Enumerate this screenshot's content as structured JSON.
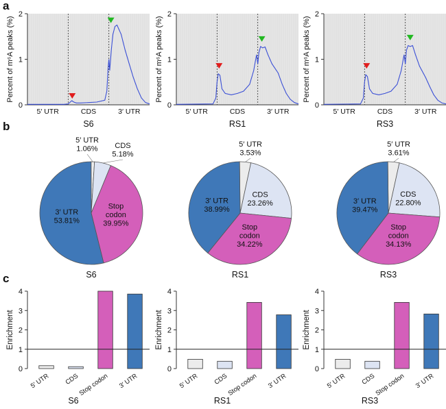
{
  "panel_labels": {
    "a": "a",
    "b": "b",
    "c": "c"
  },
  "chart_data": [
    {
      "type": "line",
      "panel": "a",
      "title": "S6",
      "ylabel": "Percent of m⁶A peaks (%)",
      "yticks": [
        "0",
        "1",
        "2"
      ],
      "ylim": [
        0,
        2
      ],
      "regions": [
        "5′ UTR",
        "CDS",
        "3′ UTR"
      ],
      "region_boundaries": [
        1,
        2
      ],
      "xlim": [
        0,
        3
      ],
      "grid": false,
      "shaded_background": "#e6e6e6",
      "line_color": "#3a4fd6",
      "markers": [
        {
          "x": 1.1,
          "y": 0.12,
          "color": "#e11d1d"
        },
        {
          "x": 2.05,
          "y": 1.78,
          "color": "#22b822"
        }
      ],
      "x": [
        0.0,
        0.9,
        1.0,
        1.05,
        1.09,
        1.14,
        1.2,
        1.3,
        1.5,
        1.7,
        1.9,
        1.95,
        1.98,
        2.0,
        2.02,
        2.06,
        2.1,
        2.15,
        2.2,
        2.3,
        2.4,
        2.5,
        2.6,
        2.7,
        2.8,
        2.9,
        3.0
      ],
      "y": [
        0.01,
        0.01,
        0.02,
        0.06,
        0.09,
        0.06,
        0.04,
        0.04,
        0.05,
        0.06,
        0.1,
        0.3,
        0.8,
        1.0,
        0.75,
        1.2,
        1.55,
        1.72,
        1.75,
        1.55,
        1.2,
        0.9,
        0.6,
        0.35,
        0.15,
        0.05,
        0.02
      ]
    },
    {
      "type": "line",
      "panel": "a",
      "title": "RS1",
      "ylabel": "Percent of m⁶A peaks (%)",
      "yticks": [
        "0",
        "1",
        "2"
      ],
      "ylim": [
        0,
        2
      ],
      "regions": [
        "5′ UTR",
        "CDS",
        "3′ UTR"
      ],
      "region_boundaries": [
        1,
        2
      ],
      "xlim": [
        0,
        3
      ],
      "grid": false,
      "shaded_background": "#e6e6e6",
      "line_color": "#3a4fd6",
      "markers": [
        {
          "x": 1.05,
          "y": 0.78,
          "color": "#e11d1d"
        },
        {
          "x": 2.1,
          "y": 1.37,
          "color": "#22b822"
        }
      ],
      "x": [
        0.0,
        0.9,
        0.97,
        1.0,
        1.03,
        1.07,
        1.12,
        1.2,
        1.35,
        1.5,
        1.65,
        1.8,
        1.9,
        1.97,
        2.0,
        2.03,
        2.07,
        2.12,
        2.18,
        2.25,
        2.35,
        2.5,
        2.6,
        2.7,
        2.8,
        2.9,
        3.0
      ],
      "y": [
        0.01,
        0.02,
        0.15,
        0.5,
        0.68,
        0.65,
        0.35,
        0.25,
        0.22,
        0.25,
        0.3,
        0.45,
        0.75,
        1.1,
        0.9,
        1.15,
        1.28,
        1.25,
        1.27,
        1.1,
        0.9,
        0.7,
        0.45,
        0.25,
        0.12,
        0.05,
        0.02
      ]
    },
    {
      "type": "line",
      "panel": "a",
      "title": "RS3",
      "ylabel": "Percent of m⁶A peaks (%)",
      "yticks": [
        "0",
        "1",
        "2"
      ],
      "ylim": [
        0,
        2
      ],
      "regions": [
        "5′ UTR",
        "CDS",
        "3′ UTR"
      ],
      "region_boundaries": [
        1,
        2
      ],
      "xlim": [
        0,
        3
      ],
      "grid": false,
      "shaded_background": "#e6e6e6",
      "line_color": "#3a4fd6",
      "markers": [
        {
          "x": 1.05,
          "y": 0.78,
          "color": "#e11d1d"
        },
        {
          "x": 2.12,
          "y": 1.4,
          "color": "#22b822"
        }
      ],
      "x": [
        0.0,
        0.9,
        0.97,
        1.0,
        1.03,
        1.07,
        1.12,
        1.2,
        1.35,
        1.5,
        1.65,
        1.8,
        1.9,
        1.97,
        2.0,
        2.03,
        2.07,
        2.12,
        2.18,
        2.25,
        2.35,
        2.5,
        2.6,
        2.7,
        2.8,
        2.9,
        3.0
      ],
      "y": [
        0.01,
        0.02,
        0.15,
        0.5,
        0.66,
        0.62,
        0.35,
        0.25,
        0.22,
        0.25,
        0.3,
        0.45,
        0.75,
        1.1,
        0.9,
        1.2,
        1.3,
        1.28,
        1.3,
        1.1,
        0.85,
        0.6,
        0.4,
        0.22,
        0.1,
        0.04,
        0.02
      ]
    },
    {
      "type": "pie",
      "panel": "b",
      "title": "S6",
      "slices": [
        {
          "name": "5′ UTR",
          "value": 1.06,
          "label": "1.06%",
          "color": "#ececec"
        },
        {
          "name": "CDS",
          "value": 5.18,
          "label": "5.18%",
          "color": "#dde4f3"
        },
        {
          "name": "Stop codon",
          "value": 39.95,
          "label": "39.95%",
          "color": "#d45fba"
        },
        {
          "name": "3′ UTR",
          "value": 53.81,
          "label": "53.81%",
          "color": "#3f78b8"
        }
      ]
    },
    {
      "type": "pie",
      "panel": "b",
      "title": "RS1",
      "slices": [
        {
          "name": "5′ UTR",
          "value": 3.53,
          "label": "3.53%",
          "color": "#ececec"
        },
        {
          "name": "CDS",
          "value": 23.26,
          "label": "23.26%",
          "color": "#dde4f3"
        },
        {
          "name": "Stop codon",
          "value": 34.22,
          "label": "34.22%",
          "color": "#d45fba"
        },
        {
          "name": "3′ UTR",
          "value": 38.99,
          "label": "38.99%",
          "color": "#3f78b8"
        }
      ]
    },
    {
      "type": "pie",
      "panel": "b",
      "title": "RS3",
      "slices": [
        {
          "name": "5′ UTR",
          "value": 3.61,
          "label": "3.61%",
          "color": "#ececec"
        },
        {
          "name": "CDS",
          "value": 22.8,
          "label": "22.80%",
          "color": "#dde4f3"
        },
        {
          "name": "Stop codon",
          "value": 34.13,
          "label": "34.13%",
          "color": "#d45fba"
        },
        {
          "name": "3′ UTR",
          "value": 39.47,
          "label": "39.47%",
          "color": "#3f78b8"
        }
      ]
    },
    {
      "type": "bar",
      "panel": "c",
      "title": "S6",
      "ylabel": "Enrichment",
      "yticks": [
        "0",
        "1",
        "2",
        "3",
        "4"
      ],
      "ylim": [
        0,
        4
      ],
      "reference_line": 1,
      "categories": [
        "5′ UTR",
        "CDS",
        "Stop codon",
        "3′ UTR"
      ],
      "values": [
        0.15,
        0.1,
        4.0,
        3.85
      ],
      "colors": [
        "#ececec",
        "#dde4f3",
        "#d45fba",
        "#3f78b8"
      ]
    },
    {
      "type": "bar",
      "panel": "c",
      "title": "RS1",
      "ylabel": "Enrichment",
      "yticks": [
        "0",
        "1",
        "2",
        "3",
        "4"
      ],
      "ylim": [
        0,
        4
      ],
      "reference_line": 1,
      "categories": [
        "5′ UTR",
        "CDS",
        "Stop codon",
        "3′ UTR"
      ],
      "values": [
        0.48,
        0.38,
        3.42,
        2.78
      ],
      "colors": [
        "#ececec",
        "#dde4f3",
        "#d45fba",
        "#3f78b8"
      ]
    },
    {
      "type": "bar",
      "panel": "c",
      "title": "RS3",
      "ylabel": "Enrichment",
      "yticks": [
        "0",
        "1",
        "2",
        "3",
        "4"
      ],
      "ylim": [
        0,
        4
      ],
      "reference_line": 1,
      "categories": [
        "5′ UTR",
        "CDS",
        "Stop codon",
        "3′ UTR"
      ],
      "values": [
        0.48,
        0.38,
        3.42,
        2.82
      ],
      "colors": [
        "#ececec",
        "#dde4f3",
        "#d45fba",
        "#3f78b8"
      ]
    }
  ]
}
